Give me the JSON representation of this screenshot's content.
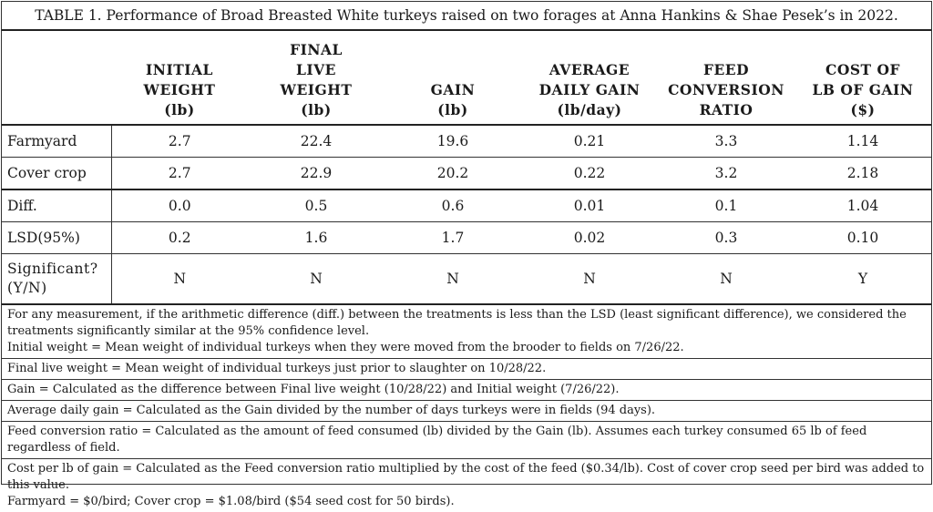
{
  "title": "TABLE 1. Performance of Broad Breasted White turkeys raised on two forages at Anna Hankins & Shae Pesek’s in 2022.",
  "columns": [
    {
      "lines": [
        "INITIAL",
        "WEIGHT",
        "(lb)"
      ]
    },
    {
      "lines": [
        "FINAL",
        "LIVE",
        "WEIGHT",
        "(lb)"
      ]
    },
    {
      "lines": [
        "GAIN",
        "(lb)"
      ]
    },
    {
      "lines": [
        "AVERAGE",
        "DAILY GAIN",
        "(lb/day)"
      ]
    },
    {
      "lines": [
        "FEED",
        "CONVERSION",
        "RATIO"
      ]
    },
    {
      "lines": [
        "COST OF",
        "LB OF GAIN",
        "($)"
      ]
    }
  ],
  "rows": [
    {
      "label": "Farmyard",
      "values": [
        "2.7",
        "22.4",
        "19.6",
        "0.21",
        "3.3",
        "1.14"
      ]
    },
    {
      "label": "Cover crop",
      "values": [
        "2.7",
        "22.9",
        "20.2",
        "0.22",
        "3.2",
        "2.18"
      ]
    },
    {
      "label": "Diff.",
      "values": [
        "0.0",
        "0.5",
        "0.6",
        "0.01",
        "0.1",
        "1.04"
      ]
    },
    {
      "label": "LSD(95%)",
      "values": [
        "0.2",
        "1.6",
        "1.7",
        "0.02",
        "0.3",
        "0.10"
      ]
    },
    {
      "label": "Significant? (Y/N)",
      "label_lines": [
        "Significant?",
        "(Y/N)"
      ],
      "values": [
        "N",
        "N",
        "N",
        "N",
        "N",
        "Y"
      ]
    }
  ],
  "notes": [
    [
      "For any measurement, if the arithmetic difference (diff.) between the treatments is less than the LSD (least significant difference), we considered the treatments significantly similar at the 95% confidence level.",
      "Initial weight = Mean weight of individual turkeys when they were moved from the brooder to fields on 7/26/22."
    ],
    [
      "Final live weight = Mean weight of individual turkeys just prior to slaughter on 10/28/22."
    ],
    [
      "Gain = Calculated as the difference between Final live weight (10/28/22) and Initial weight (7/26/22)."
    ],
    [
      "Average daily gain = Calculated as the Gain divided by the number of days turkeys were in fields (94 days)."
    ],
    [
      "Feed conversion ratio = Calculated as the amount of feed consumed (lb) divided by the Gain (lb). Assumes each turkey consumed 65 lb of feed regardless of field."
    ],
    [
      "Cost per lb of gain = Calculated as the Feed conversion ratio multiplied by the cost of the feed ($0.34/lb). Cost of cover crop seed per bird was added to this value.",
      "Farmyard = $0/bird; Cover crop = $1.08/bird ($54 seed cost for 50 birds)."
    ]
  ]
}
